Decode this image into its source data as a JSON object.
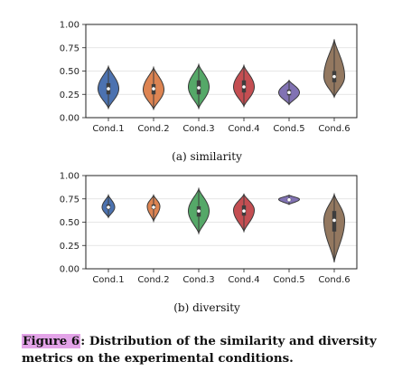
{
  "caption": {
    "label": "Figure 6",
    "text": ": Distribution of the similarity and diversity metrics on the experimental conditions."
  },
  "chart_data": [
    {
      "type": "violin",
      "subtitle": "(a) similarity",
      "categories": [
        "Cond.1",
        "Cond.2",
        "Cond.3",
        "Cond.4",
        "Cond.5",
        "Cond.6"
      ],
      "ylim": [
        0,
        1
      ],
      "yticks": [
        "0.00",
        "0.25",
        "0.50",
        "0.75",
        "1.00"
      ],
      "grid": true,
      "colors": [
        "#4c72b0",
        "#dd8452",
        "#55a868",
        "#c44e52",
        "#8172b3",
        "#937860"
      ],
      "series": [
        {
          "category": "Cond.1",
          "min": 0.1,
          "max": 0.55,
          "median": 0.31,
          "q1": 0.25,
          "q3": 0.37,
          "mode": 0.31,
          "half_width": 0.46
        },
        {
          "category": "Cond.2",
          "min": 0.09,
          "max": 0.54,
          "median": 0.31,
          "q1": 0.25,
          "q3": 0.36,
          "mode": 0.3,
          "half_width": 0.46
        },
        {
          "category": "Cond.3",
          "min": 0.1,
          "max": 0.57,
          "median": 0.32,
          "q1": 0.25,
          "q3": 0.4,
          "mode": 0.33,
          "half_width": 0.46
        },
        {
          "category": "Cond.4",
          "min": 0.12,
          "max": 0.56,
          "median": 0.33,
          "q1": 0.27,
          "q3": 0.4,
          "mode": 0.33,
          "half_width": 0.46
        },
        {
          "category": "Cond.5",
          "min": 0.14,
          "max": 0.4,
          "median": 0.27,
          "q1": 0.24,
          "q3": 0.3,
          "mode": 0.27,
          "half_width": 0.46
        },
        {
          "category": "Cond.6",
          "min": 0.22,
          "max": 0.84,
          "median": 0.44,
          "q1": 0.38,
          "q3": 0.5,
          "mode": 0.44,
          "half_width": 0.46
        }
      ]
    },
    {
      "type": "violin",
      "subtitle": "(b) diversity",
      "categories": [
        "Cond.1",
        "Cond.2",
        "Cond.3",
        "Cond.4",
        "Cond.5",
        "Cond.6"
      ],
      "ylim": [
        0,
        1
      ],
      "yticks": [
        "0.00",
        "0.25",
        "0.50",
        "0.75",
        "1.00"
      ],
      "grid": true,
      "colors": [
        "#4c72b0",
        "#dd8452",
        "#55a868",
        "#c44e52",
        "#8172b3",
        "#937860"
      ],
      "series": [
        {
          "category": "Cond.1",
          "min": 0.55,
          "max": 0.79,
          "median": 0.66,
          "q1": 0.64,
          "q3": 0.69,
          "mode": 0.66,
          "half_width": 0.28
        },
        {
          "category": "Cond.2",
          "min": 0.51,
          "max": 0.79,
          "median": 0.66,
          "q1": 0.64,
          "q3": 0.69,
          "mode": 0.67,
          "half_width": 0.28
        },
        {
          "category": "Cond.3",
          "min": 0.38,
          "max": 0.86,
          "median": 0.62,
          "q1": 0.56,
          "q3": 0.67,
          "mode": 0.62,
          "half_width": 0.46
        },
        {
          "category": "Cond.4",
          "min": 0.4,
          "max": 0.8,
          "median": 0.62,
          "q1": 0.57,
          "q3": 0.68,
          "mode": 0.63,
          "half_width": 0.46
        },
        {
          "category": "Cond.5",
          "min": 0.69,
          "max": 0.79,
          "median": 0.74,
          "q1": 0.73,
          "q3": 0.75,
          "mode": 0.745,
          "half_width": 0.46
        },
        {
          "category": "Cond.6",
          "min": 0.07,
          "max": 0.8,
          "median": 0.52,
          "q1": 0.4,
          "q3": 0.62,
          "mode": 0.52,
          "half_width": 0.46
        }
      ]
    }
  ]
}
